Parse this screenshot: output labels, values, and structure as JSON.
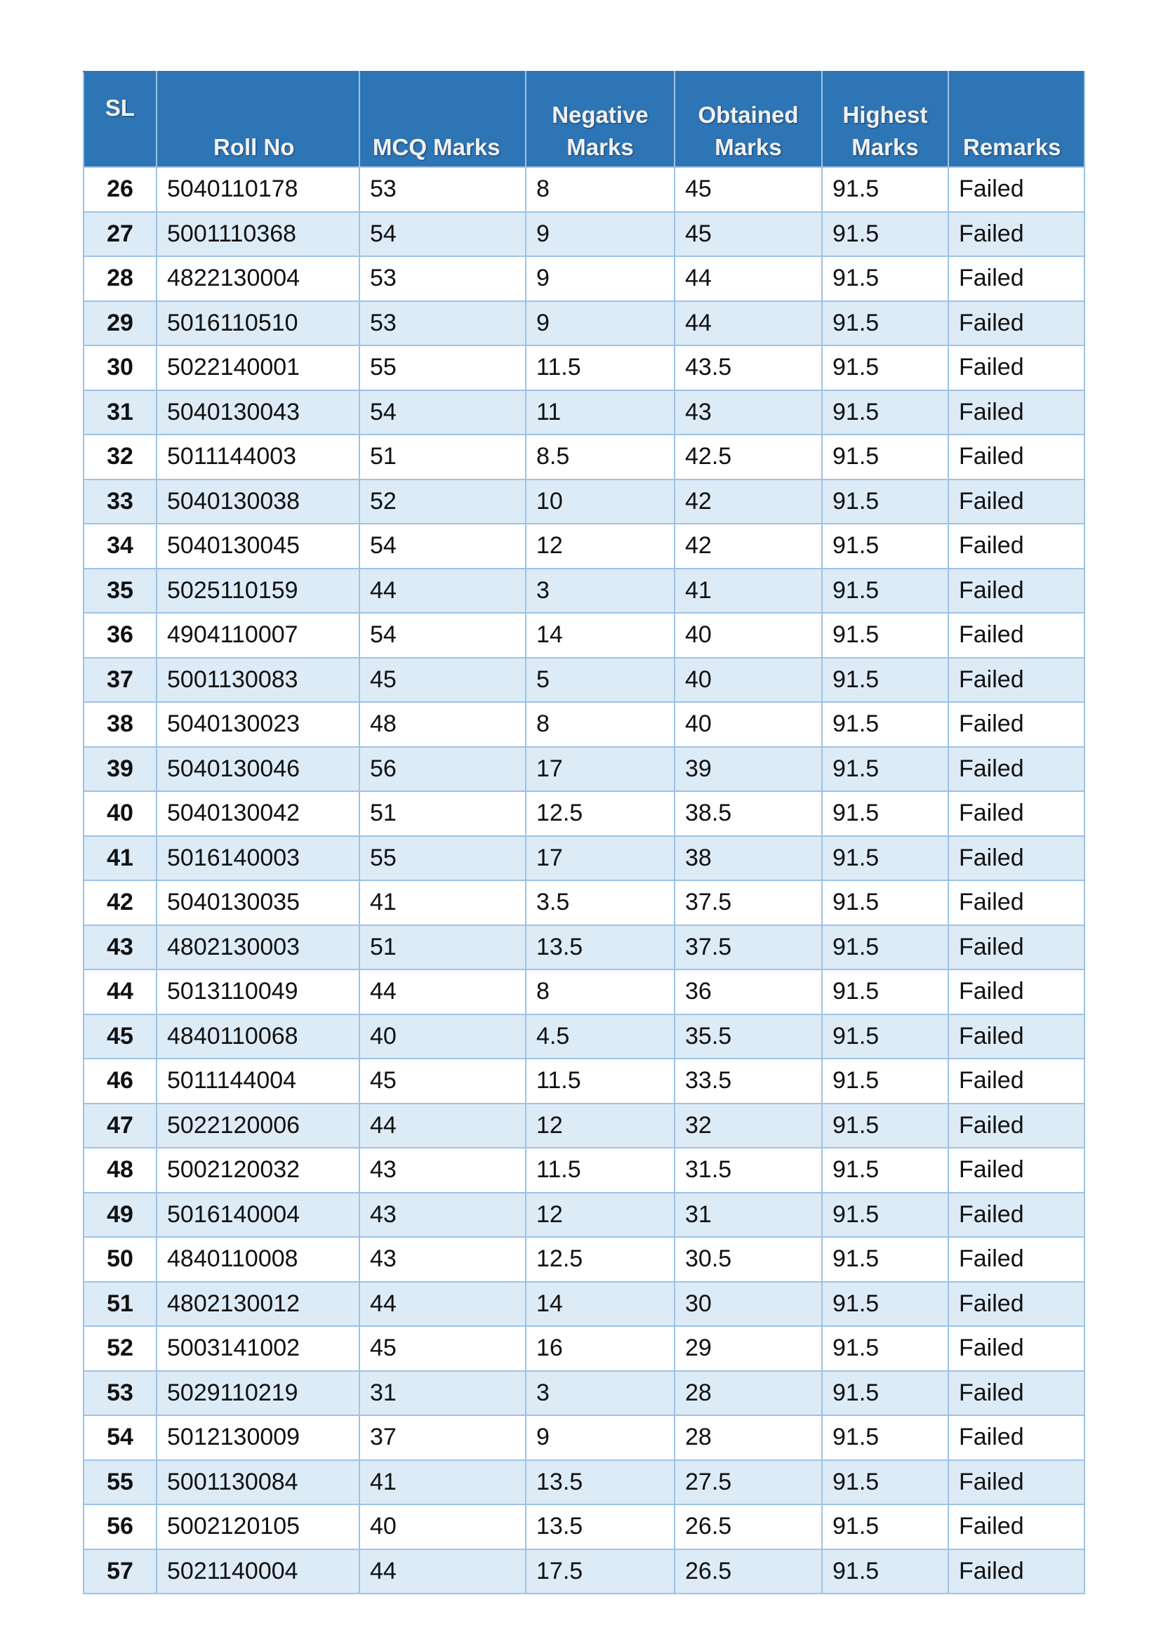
{
  "headers": {
    "sl": "SL",
    "roll_no": "Roll No",
    "mcq_marks": "MCQ Marks",
    "negative_marks": [
      "Negative",
      "Marks"
    ],
    "obtained_marks": [
      "Obtained",
      "Marks"
    ],
    "highest_marks": [
      "Highest",
      "Marks"
    ],
    "remarks": "Remarks"
  },
  "rows": [
    [
      "26",
      "5040110178",
      "53",
      "8",
      "45",
      "91.5",
      "Failed"
    ],
    [
      "27",
      "5001110368",
      "54",
      "9",
      "45",
      "91.5",
      "Failed"
    ],
    [
      "28",
      "4822130004",
      "53",
      "9",
      "44",
      "91.5",
      "Failed"
    ],
    [
      "29",
      "5016110510",
      "53",
      "9",
      "44",
      "91.5",
      "Failed"
    ],
    [
      "30",
      "5022140001",
      "55",
      "11.5",
      "43.5",
      "91.5",
      "Failed"
    ],
    [
      "31",
      "5040130043",
      "54",
      "11",
      "43",
      "91.5",
      "Failed"
    ],
    [
      "32",
      "5011144003",
      "51",
      "8.5",
      "42.5",
      "91.5",
      "Failed"
    ],
    [
      "33",
      "5040130038",
      "52",
      "10",
      "42",
      "91.5",
      "Failed"
    ],
    [
      "34",
      "5040130045",
      "54",
      "12",
      "42",
      "91.5",
      "Failed"
    ],
    [
      "35",
      "5025110159",
      "44",
      "3",
      "41",
      "91.5",
      "Failed"
    ],
    [
      "36",
      "4904110007",
      "54",
      "14",
      "40",
      "91.5",
      "Failed"
    ],
    [
      "37",
      "5001130083",
      "45",
      "5",
      "40",
      "91.5",
      "Failed"
    ],
    [
      "38",
      "5040130023",
      "48",
      "8",
      "40",
      "91.5",
      "Failed"
    ],
    [
      "39",
      "5040130046",
      "56",
      "17",
      "39",
      "91.5",
      "Failed"
    ],
    [
      "40",
      "5040130042",
      "51",
      "12.5",
      "38.5",
      "91.5",
      "Failed"
    ],
    [
      "41",
      "5016140003",
      "55",
      "17",
      "38",
      "91.5",
      "Failed"
    ],
    [
      "42",
      "5040130035",
      "41",
      "3.5",
      "37.5",
      "91.5",
      "Failed"
    ],
    [
      "43",
      "4802130003",
      "51",
      "13.5",
      "37.5",
      "91.5",
      "Failed"
    ],
    [
      "44",
      "5013110049",
      "44",
      "8",
      "36",
      "91.5",
      "Failed"
    ],
    [
      "45",
      "4840110068",
      "40",
      "4.5",
      "35.5",
      "91.5",
      "Failed"
    ],
    [
      "46",
      "5011144004",
      "45",
      "11.5",
      "33.5",
      "91.5",
      "Failed"
    ],
    [
      "47",
      "5022120006",
      "44",
      "12",
      "32",
      "91.5",
      "Failed"
    ],
    [
      "48",
      "5002120032",
      "43",
      "11.5",
      "31.5",
      "91.5",
      "Failed"
    ],
    [
      "49",
      "5016140004",
      "43",
      "12",
      "31",
      "91.5",
      "Failed"
    ],
    [
      "50",
      "4840110008",
      "43",
      "12.5",
      "30.5",
      "91.5",
      "Failed"
    ],
    [
      "51",
      "4802130012",
      "44",
      "14",
      "30",
      "91.5",
      "Failed"
    ],
    [
      "52",
      "5003141002",
      "45",
      "16",
      "29",
      "91.5",
      "Failed"
    ],
    [
      "53",
      "5029110219",
      "31",
      "3",
      "28",
      "91.5",
      "Failed"
    ],
    [
      "54",
      "5012130009",
      "37",
      "9",
      "28",
      "91.5",
      "Failed"
    ],
    [
      "55",
      "5001130084",
      "41",
      "13.5",
      "27.5",
      "91.5",
      "Failed"
    ],
    [
      "56",
      "5002120105",
      "40",
      "13.5",
      "26.5",
      "91.5",
      "Failed"
    ],
    [
      "57",
      "5021140004",
      "44",
      "17.5",
      "26.5",
      "91.5",
      "Failed"
    ]
  ],
  "colors": {
    "header_bg": "#2e75b6",
    "alt_row_bg": "#ddebf7",
    "border": "#9dc3e6"
  }
}
